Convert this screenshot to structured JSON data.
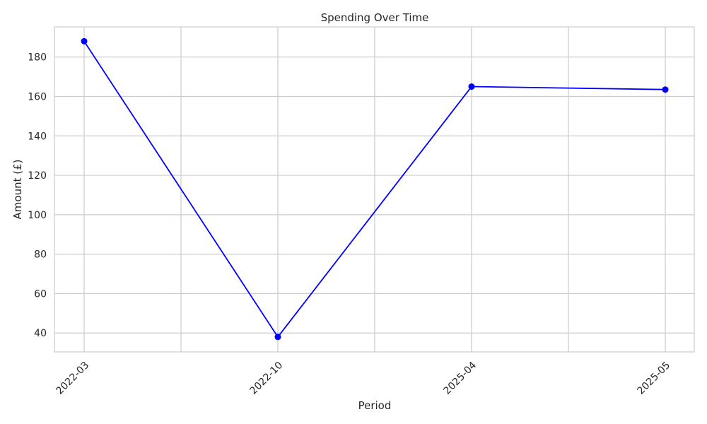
{
  "chart_data": {
    "type": "line",
    "title": "Spending Over Time",
    "xlabel": "Period",
    "ylabel": "Amount (£)",
    "categories": [
      "2022-03",
      "2022-10",
      "2025-04",
      "2025-05"
    ],
    "series": [
      {
        "values": [
          188,
          38,
          165,
          163.5
        ]
      }
    ],
    "ylim": [
      30.4,
      195.3
    ],
    "yticks": [
      40,
      60,
      80,
      100,
      120,
      140,
      160,
      180
    ],
    "grid": true,
    "legend": "none",
    "x_tick_rotation": 45,
    "colors": {
      "series": "#0000ff",
      "grid": "#cccccc",
      "text": "#262626"
    }
  }
}
